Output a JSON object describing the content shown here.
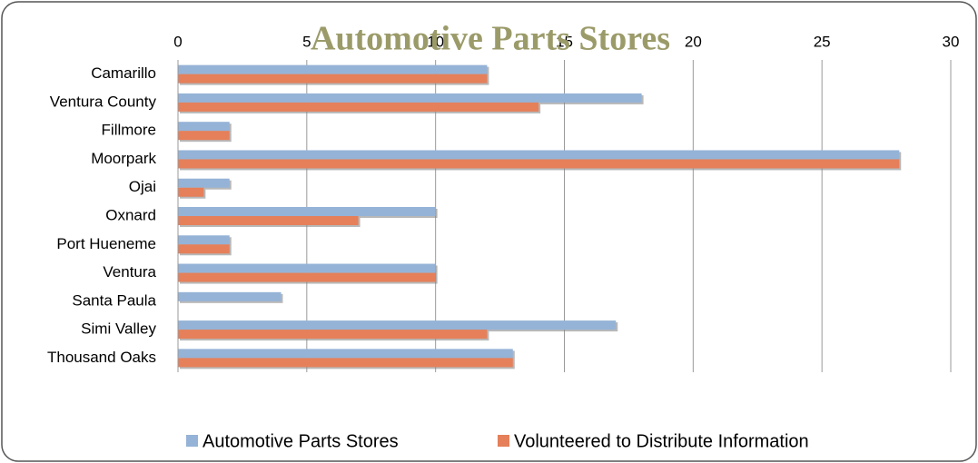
{
  "chart_data": {
    "type": "bar",
    "orientation": "horizontal",
    "title": "Automotive Parts Stores",
    "categories": [
      "Camarillo",
      "Ventura County",
      "Fillmore",
      "Moorpark",
      "Ojai",
      "Oxnard",
      "Port Hueneme",
      "Ventura",
      "Santa Paula",
      "Simi Valley",
      "Thousand Oaks"
    ],
    "series": [
      {
        "name": "Automotive Parts Stores",
        "color": "#95b3d7",
        "values": [
          12,
          18,
          2,
          28,
          2,
          10,
          2,
          10,
          4,
          17,
          13
        ]
      },
      {
        "name": "Volunteered to Distribute Information",
        "color": "#e5805a",
        "values": [
          12,
          14,
          2,
          28,
          1,
          7,
          2,
          10,
          0,
          12,
          13
        ]
      }
    ],
    "xlim": [
      0,
      30
    ],
    "xticks": [
      0,
      5,
      10,
      15,
      20,
      25,
      30
    ],
    "grid": true,
    "legend": "bottom"
  }
}
